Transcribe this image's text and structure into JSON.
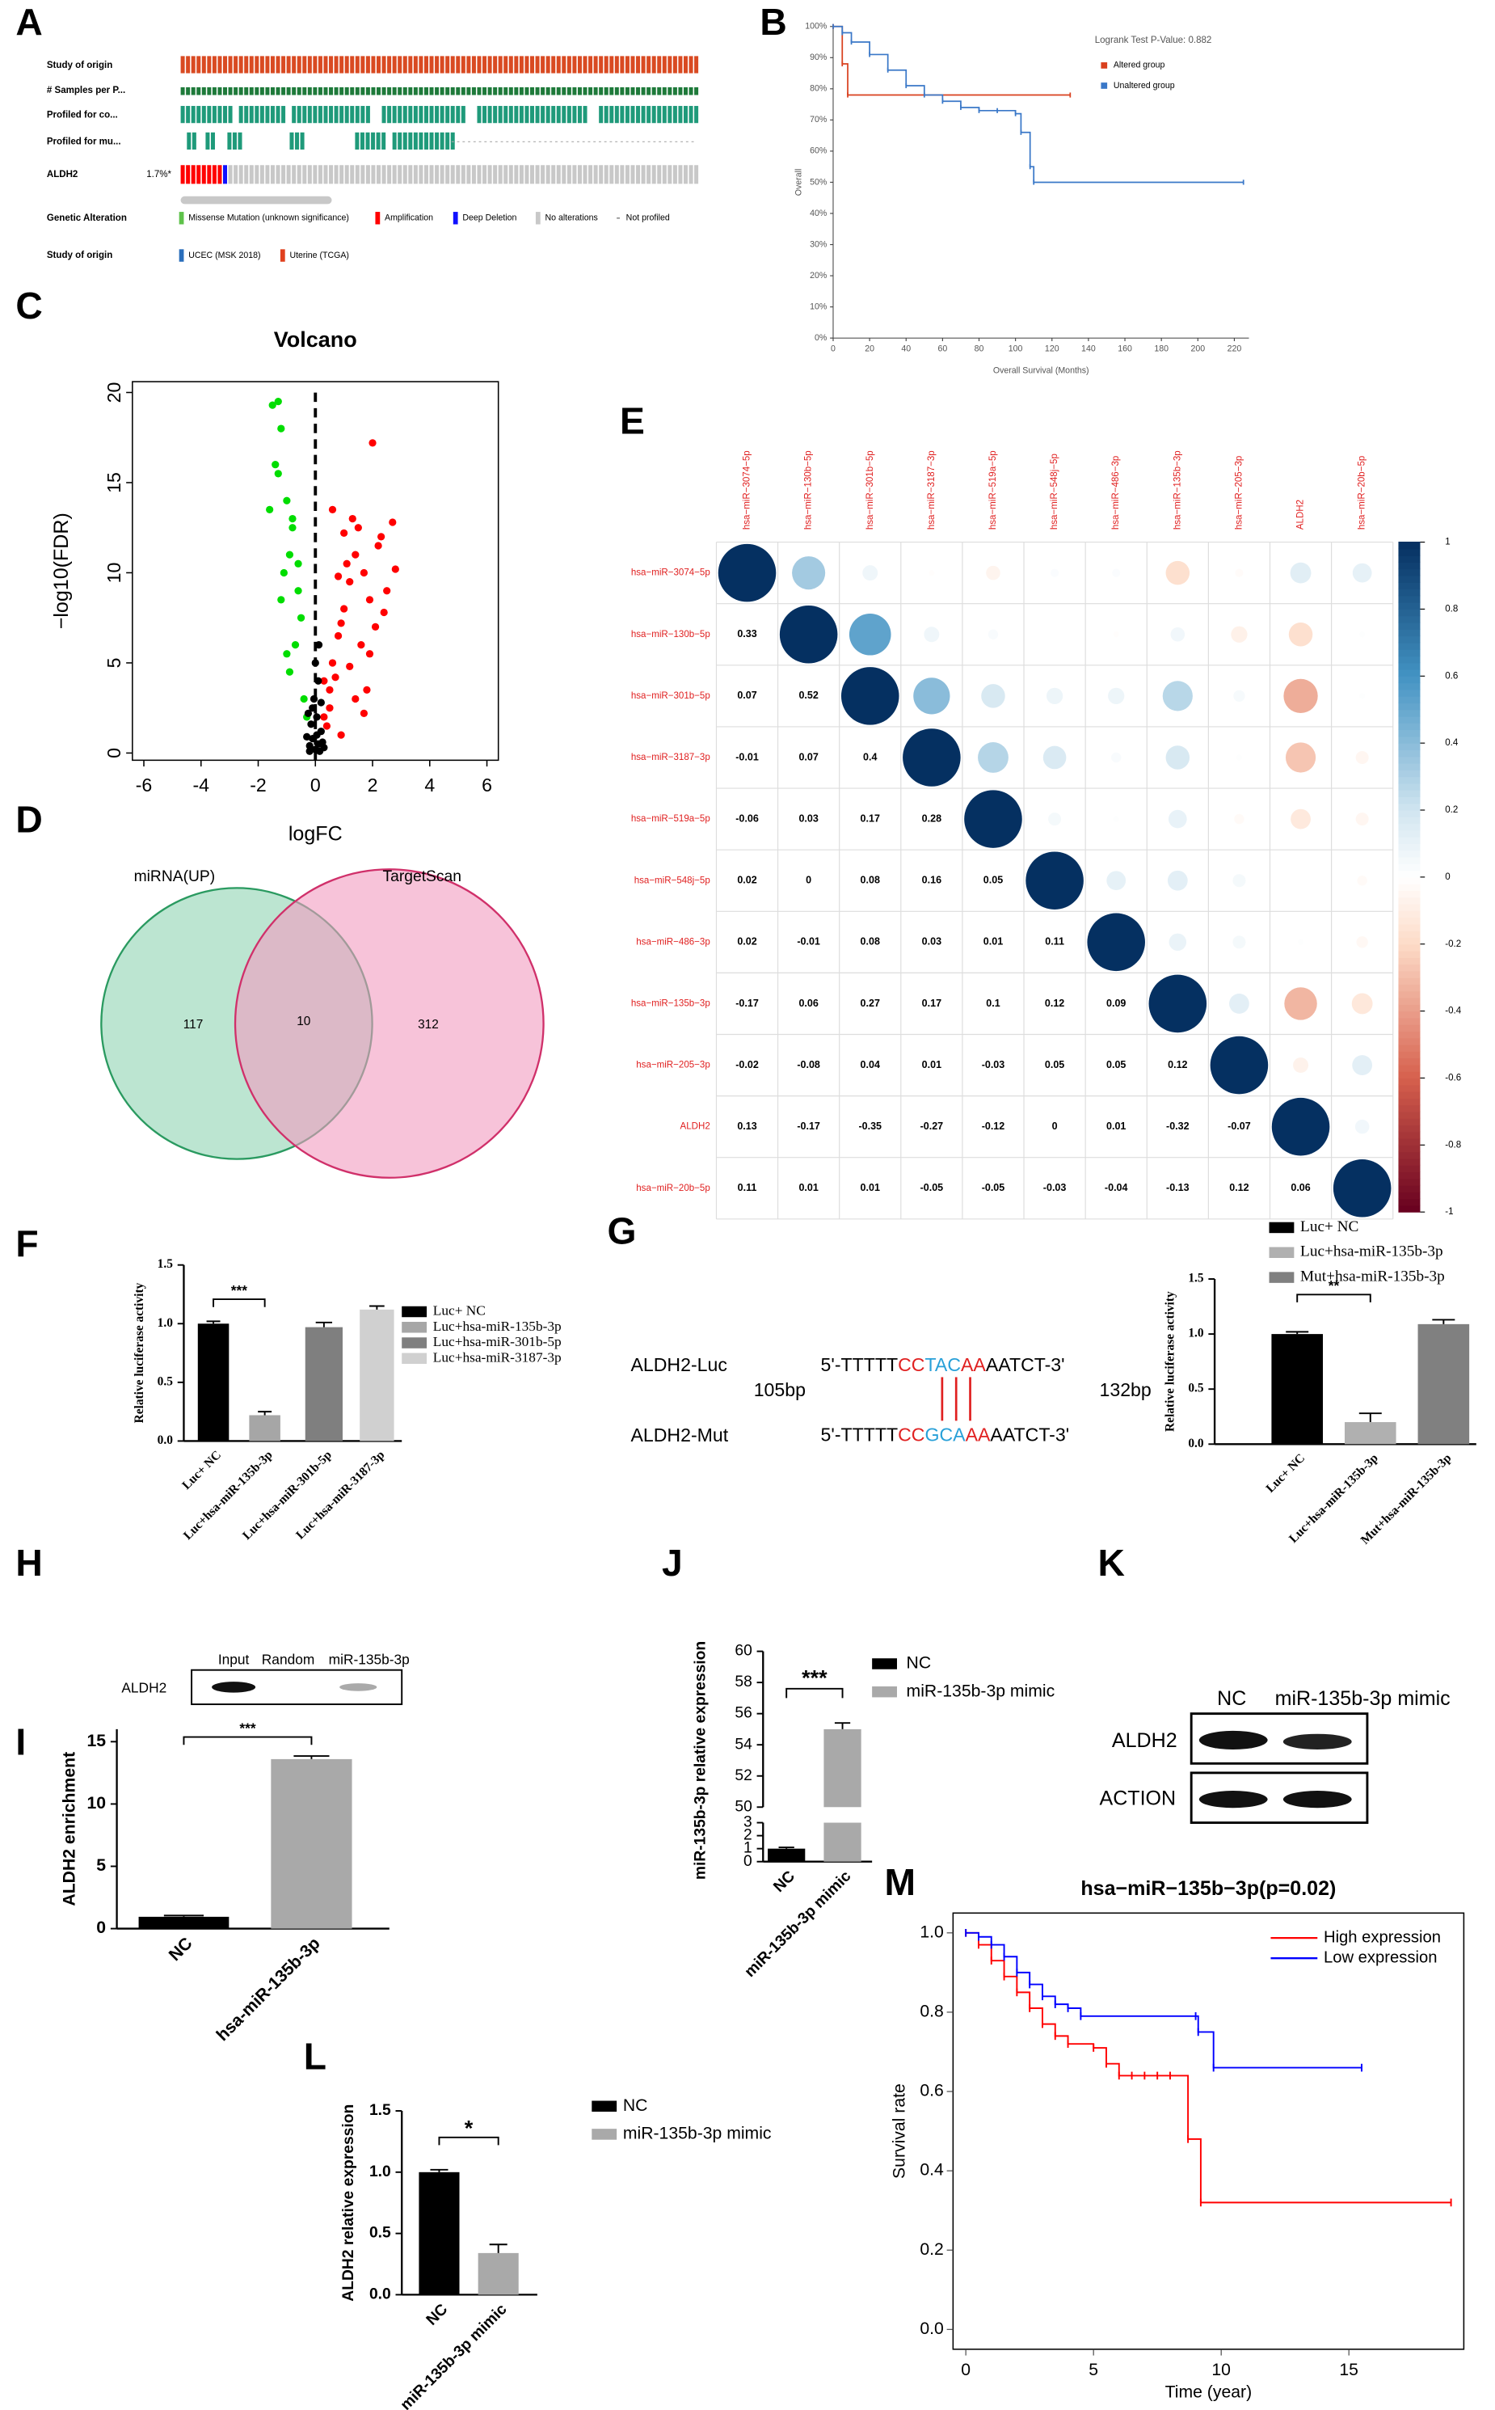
{
  "chart_data": [
    {
      "type": "line",
      "annotation": "Logrank Test P-Value: 0.882",
      "xlabel": "Overall Survival (Months)",
      "ylabel": "Overall",
      "xlim": [
        0,
        228
      ],
      "ylim": [
        0,
        100
      ],
      "xticks": [
        0,
        20,
        40,
        60,
        80,
        100,
        120,
        140,
        160,
        180,
        200,
        220
      ],
      "yticks": [
        {
          "value": 0,
          "label": "0%"
        },
        {
          "value": 10,
          "label": "10%"
        },
        {
          "value": 20,
          "label": "20%"
        },
        {
          "value": 30,
          "label": "30%"
        },
        {
          "value": 40,
          "label": "40%"
        },
        {
          "value": 50,
          "label": "50%"
        },
        {
          "value": 60,
          "label": "60%"
        },
        {
          "value": 70,
          "label": "70%"
        },
        {
          "value": 80,
          "label": "80%"
        },
        {
          "value": 90,
          "label": "90%"
        },
        {
          "value": 100,
          "label": "100%"
        }
      ],
      "legend": "upper right",
      "series": [
        {
          "name": "Altered group",
          "color": "#d9401e",
          "x": [
            0,
            5,
            8,
            130
          ],
          "values": [
            100,
            88,
            78,
            78
          ]
        },
        {
          "name": "Unaltered group",
          "color": "#3a78c8",
          "x": [
            0,
            5,
            10,
            20,
            30,
            40,
            50,
            60,
            70,
            80,
            90,
            100,
            103,
            108,
            110,
            225
          ],
          "values": [
            100,
            98,
            95,
            91,
            86,
            81,
            78,
            76,
            74,
            73,
            73,
            72,
            66,
            55,
            50,
            50
          ]
        }
      ]
    },
    {
      "type": "scatter",
      "title": "Volcano",
      "xlabel": "logFC",
      "ylabel": "−log10(FDR)",
      "xlim": [
        -6.4,
        6.4
      ],
      "ylim": [
        -0.4,
        20.6
      ],
      "xticks": [
        -6,
        -4,
        -2,
        0,
        2,
        4,
        6
      ],
      "yticks": [
        0,
        5,
        10,
        15,
        20
      ],
      "vline": 0,
      "series": [
        {
          "color": "#ff0000",
          "x": [
            0.3,
            0.5,
            0.6,
            0.8,
            1.0,
            1.2,
            1.4,
            1.5,
            1.7,
            1.9,
            2.1,
            2.3,
            2.5,
            2.7,
            0.4,
            0.7,
            0.9,
            1.1,
            1.3,
            1.6,
            1.8,
            2.0,
            2.2,
            0.5,
            0.8,
            1.2,
            1.9,
            2.4,
            0.6,
            1.0,
            1.4,
            2.8,
            0.3,
            0.9,
            1.7
          ],
          "values": [
            2.0,
            3.5,
            5.0,
            6.5,
            8.0,
            9.5,
            11.0,
            12.5,
            10.0,
            8.5,
            7.0,
            12.0,
            9.0,
            12.8,
            1.5,
            4.2,
            7.2,
            10.5,
            13.0,
            6.0,
            3.5,
            17.2,
            11.5,
            2.5,
            9.8,
            4.8,
            5.5,
            7.8,
            13.5,
            12.2,
            3.0,
            10.2,
            4.0,
            1.0,
            2.2
          ]
        },
        {
          "color": "#00dd00",
          "x": [
            -1.5,
            -1.3,
            -1.2,
            -1.4,
            -1.0,
            -0.8,
            -0.9,
            -1.1,
            -0.6,
            -0.5,
            -0.7,
            -1.6,
            -1.2,
            -0.9,
            -0.4,
            -0.3,
            -1.0,
            -0.8,
            -1.3,
            -0.6
          ],
          "values": [
            19.3,
            19.5,
            18.0,
            16.0,
            14.0,
            12.5,
            11.0,
            10.0,
            9.0,
            7.5,
            6.0,
            13.5,
            8.5,
            4.5,
            3.0,
            2.0,
            5.5,
            13.0,
            15.5,
            10.5
          ]
        },
        {
          "color": "#000000",
          "x": [
            0,
            0.1,
            -0.1,
            0.2,
            -0.2,
            0.05,
            -0.05,
            0.15,
            -0.15,
            0.3,
            -0.3,
            0.1,
            -0.1,
            0.2,
            -0.2,
            0.05,
            0.0,
            -0.25,
            0.25,
            0.12
          ],
          "values": [
            0.2,
            0.5,
            0.8,
            1.2,
            0.4,
            2.0,
            3.0,
            0.1,
            1.6,
            0.3,
            0.9,
            4.0,
            2.5,
            2.8,
            0.1,
            1.0,
            5.0,
            2.2,
            0.6,
            6.0
          ]
        }
      ]
    },
    {
      "type": "correlogram",
      "labels": [
        "hsa−miR−3074−5p",
        "hsa−miR−130b−5p",
        "hsa−miR−301b−5p",
        "hsa−miR−3187−3p",
        "hsa−miR−519a−5p",
        "hsa−miR−548j−5p",
        "hsa−miR−486−3p",
        "hsa−miR−135b−3p",
        "hsa−miR−205−3p",
        "ALDH2",
        "hsa−miR−20b−5p"
      ],
      "values": [
        [
          1
        ],
        [
          0.33,
          1
        ],
        [
          0.07,
          0.52,
          1
        ],
        [
          -0.01,
          0.07,
          0.4,
          1
        ],
        [
          -0.06,
          0.03,
          0.17,
          0.28,
          1
        ],
        [
          0.02,
          0,
          0.08,
          0.16,
          0.05,
          1
        ],
        [
          0.02,
          -0.01,
          0.08,
          0.03,
          0.01,
          0.11,
          1
        ],
        [
          -0.17,
          0.06,
          0.27,
          0.17,
          0.1,
          0.12,
          0.09,
          1
        ],
        [
          -0.02,
          -0.08,
          0.04,
          0.01,
          -0.03,
          0.05,
          0.05,
          0.12,
          1
        ],
        [
          0.13,
          -0.17,
          -0.35,
          -0.27,
          -0.12,
          0,
          0.01,
          -0.32,
          -0.07,
          1
        ],
        [
          0.11,
          0.01,
          0.01,
          -0.05,
          -0.05,
          -0.03,
          -0.04,
          -0.13,
          0.12,
          0.06,
          1
        ]
      ],
      "clim": [
        -1,
        1
      ],
      "cticks": [
        -1,
        -0.8,
        -0.6,
        -0.4,
        -0.2,
        0,
        0.2,
        0.4,
        0.6,
        0.8,
        1
      ]
    },
    {
      "type": "bar",
      "ylabel": "Relative luciferase activity",
      "categories": [
        "Luc+ NC",
        "Luc+hsa-miR-135b-3p",
        "Luc+hsa-miR-301b-5p",
        "Luc+hsa-miR-3187-3p"
      ],
      "values": [
        1.0,
        0.22,
        0.97,
        1.12
      ],
      "errors": [
        0.02,
        0.03,
        0.04,
        0.03
      ],
      "colors": [
        "#000000",
        "#a6a6a6",
        "#7f7f7f",
        "#d0d0d0"
      ],
      "ylim": [
        0,
        1.5
      ],
      "yticks": [
        {
          "value": 0,
          "label": "0.0"
        },
        0.5,
        {
          "value": 1,
          "label": "1.0"
        },
        1.5
      ],
      "annotation": "***",
      "legend": "right"
    },
    {
      "type": "bar",
      "ylabel": "Relative luciferase activity",
      "categories": [
        "Luc+ NC",
        "Luc+hsa-miR-135b-3p",
        "Mut+hsa-miR-135b-3p"
      ],
      "values": [
        1.0,
        0.2,
        1.09
      ],
      "errors": [
        0.02,
        0.08,
        0.04
      ],
      "colors": [
        "#000000",
        "#b0b0b0",
        "#808080"
      ],
      "ylim": [
        0,
        1.5
      ],
      "yticks": [
        {
          "value": 0,
          "label": "0.0"
        },
        0.5,
        {
          "value": 1,
          "label": "1.0"
        },
        1.5
      ],
      "annotation": "**",
      "legend": "top"
    },
    {
      "type": "bar",
      "ylabel": "ALDH2 enrichment",
      "categories": [
        "NC",
        "hsa-miR-135b-3p"
      ],
      "values": [
        0.95,
        13.6
      ],
      "errors": [
        0.1,
        0.25
      ],
      "colors": [
        "#000000",
        "#a9a9a9"
      ],
      "ylim": [
        0,
        16
      ],
      "yticks": [
        0,
        5,
        10,
        15
      ],
      "annotation": "***"
    },
    {
      "type": "broken_bar",
      "ylabel": "miR-135b-3p relative expression",
      "categories": [
        "NC",
        "miR-135b-3p mimic"
      ],
      "values": [
        1,
        55
      ],
      "errors": [
        0.1,
        0.4
      ],
      "colors": [
        "#000000",
        "#a9a9a9"
      ],
      "lower": {
        "ylim": [
          0,
          3
        ],
        "yticks": [
          0,
          1,
          2,
          3
        ]
      },
      "upper": {
        "ylim": [
          50,
          60
        ],
        "yticks": [
          50,
          52,
          54,
          56,
          58,
          60
        ]
      },
      "annotation": "***",
      "legend": "right"
    },
    {
      "type": "bar",
      "ylabel": "ALDH2 relative expression",
      "categories": [
        "NC",
        "miR-135b-3p mimic"
      ],
      "values": [
        1.0,
        0.34
      ],
      "errors": [
        0.02,
        0.07
      ],
      "colors": [
        "#000000",
        "#a9a9a9"
      ],
      "ylim": [
        0,
        1.5
      ],
      "yticks": [
        {
          "value": 0,
          "label": "0.0"
        },
        0.5,
        {
          "value": 1,
          "label": "1.0"
        },
        1.5
      ],
      "annotation": "*",
      "legend": "right"
    },
    {
      "type": "line",
      "title": "hsa−miR−135b−3p(p=0.02)",
      "xlabel": "Time (year)",
      "ylabel": "Survival rate",
      "xlim": [
        -0.5,
        19.5
      ],
      "ylim": [
        -0.05,
        1.05
      ],
      "xticks": [
        0,
        5,
        10,
        15
      ],
      "yticks": [
        {
          "value": 0,
          "label": "0.0"
        },
        0.2,
        0.4,
        0.6,
        0.8,
        {
          "value": 1,
          "label": "1.0"
        }
      ],
      "legend": "upper right",
      "series": [
        {
          "name": "High expression",
          "color": "#ff0000",
          "x": [
            0,
            0.5,
            1,
            1.5,
            2,
            2.5,
            3,
            3.5,
            4,
            5,
            5.5,
            6,
            6.5,
            7,
            7.5,
            8,
            8.7,
            9.2,
            19
          ],
          "values": [
            1,
            0.97,
            0.93,
            0.89,
            0.85,
            0.81,
            0.77,
            0.74,
            0.72,
            0.71,
            0.67,
            0.64,
            0.64,
            0.64,
            0.64,
            0.64,
            0.48,
            0.32,
            0.32
          ]
        },
        {
          "name": "Low expression",
          "color": "#0000ff",
          "x": [
            0,
            0.5,
            1,
            1.5,
            2,
            2.5,
            3,
            3.5,
            4,
            4.5,
            9,
            9.1,
            9.7,
            15.5
          ],
          "values": [
            1,
            0.99,
            0.97,
            0.94,
            0.9,
            0.87,
            0.84,
            0.82,
            0.81,
            0.79,
            0.79,
            0.75,
            0.66,
            0.66
          ]
        }
      ]
    }
  ],
  "panels": {
    "letters": [
      "A",
      "B",
      "C",
      "D",
      "E",
      "F",
      "G",
      "H",
      "I",
      "J",
      "K",
      "L",
      "M"
    ],
    "A": {
      "rows": [
        "Study of origin",
        "# Samples per P...",
        "Profiled for co...",
        "Profiled for mu...",
        "ALDH2"
      ],
      "frequency": "1.7%*",
      "legend_title": "Genetic Alteration",
      "legend": [
        "Missense Mutation (unknown significance)",
        "Amplification",
        "Deep Deletion",
        "No alterations",
        "Not profiled"
      ],
      "study_title": "Study of origin",
      "studies": [
        "UCEC (MSK 2018)",
        "Uterine (TCGA)"
      ]
    },
    "D": {
      "sets": [
        "miRNA(UP)",
        "TargetScan"
      ],
      "counts": [
        "117",
        "10",
        "312"
      ]
    },
    "G": {
      "names": [
        "ALDH2-Luc",
        "ALDH2-Mut"
      ],
      "lengths": [
        "105bp",
        "132bp"
      ],
      "sequences": [
        [
          "5'-TTTTT",
          "CC",
          "TAC",
          "AA",
          "AATCT-3'"
        ],
        [
          "5'-TTTTT",
          "CC",
          "GCA",
          "AA",
          "AATCT-3'"
        ]
      ]
    },
    "H": {
      "lanes": [
        "Input",
        "Random",
        "miR-135b-3p"
      ],
      "protein": "ALDH2"
    },
    "K": {
      "lanes": [
        "NC",
        "miR-135b-3p mimic"
      ],
      "proteins": [
        "ALDH2",
        "ACTION"
      ]
    }
  }
}
